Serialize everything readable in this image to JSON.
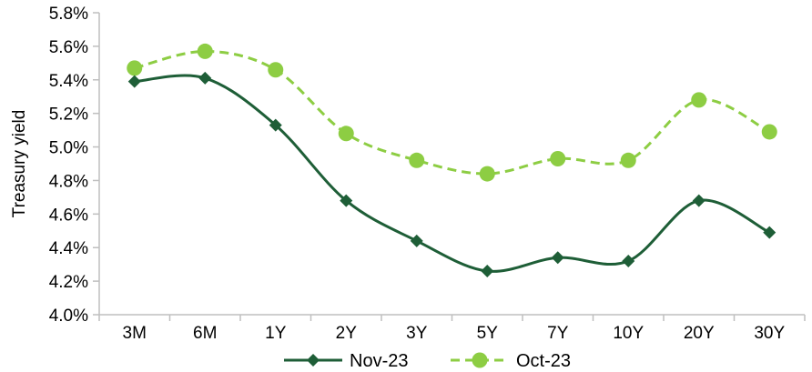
{
  "chart_data": {
    "type": "line",
    "title": "",
    "xlabel": "",
    "ylabel": "Treasury yield",
    "categories": [
      "3M",
      "6M",
      "1Y",
      "2Y",
      "3Y",
      "5Y",
      "7Y",
      "10Y",
      "20Y",
      "30Y"
    ],
    "ylim": [
      4.0,
      5.8
    ],
    "yticks": [
      "4.0%",
      "4.2%",
      "4.4%",
      "4.6%",
      "4.8%",
      "5.0%",
      "5.2%",
      "5.4%",
      "5.6%",
      "5.8%"
    ],
    "grid": false,
    "legend_position": "bottom",
    "series": [
      {
        "name": "Nov-23",
        "values": [
          5.39,
          5.41,
          5.13,
          4.68,
          4.44,
          4.26,
          4.34,
          4.32,
          4.68,
          4.49
        ],
        "color": "#1e5e37",
        "line_style": "solid",
        "marker": "diamond"
      },
      {
        "name": "Oct-23",
        "values": [
          5.47,
          5.57,
          5.46,
          5.08,
          4.92,
          4.84,
          4.93,
          4.92,
          5.28,
          5.09
        ],
        "color": "#8dcd43",
        "line_style": "dashed",
        "marker": "circle"
      }
    ]
  }
}
